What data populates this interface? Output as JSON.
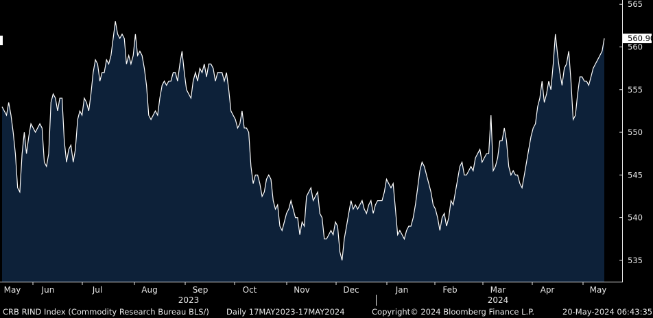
{
  "chart_data": {
    "type": "area",
    "ylim": [
      532.5,
      565.5
    ],
    "yticks": [
      535,
      540,
      545,
      550,
      555,
      560,
      565
    ],
    "last_value_label": "560.90",
    "months": [
      "May",
      "Jun",
      "Jul",
      "Aug",
      "Sep",
      "Oct",
      "Nov",
      "Dec",
      "Jan",
      "Feb",
      "Mar",
      "Apr",
      "May"
    ],
    "years": [
      "2023",
      "2024"
    ],
    "series": [
      {
        "values": [
          553.0,
          552.5,
          552.0,
          553.5,
          552.0,
          550.0,
          547.5,
          543.5,
          543.0,
          547.5,
          550.0,
          547.5,
          549.5,
          551.0,
          550.5,
          550.0,
          550.5,
          551.0,
          550.5,
          546.5,
          546.0,
          547.5,
          553.5,
          554.5,
          554.0,
          552.5,
          554.0,
          554.0,
          549.0,
          546.5,
          548.0,
          548.5,
          546.5,
          548.0,
          551.5,
          552.5,
          552.0,
          554.0,
          553.5,
          552.5,
          554.5,
          557.0,
          558.5,
          558.0,
          556.0,
          557.0,
          557.0,
          558.5,
          558.0,
          559.0,
          561.0,
          563.0,
          561.5,
          561.0,
          561.5,
          561.0,
          558.0,
          559.0,
          558.0,
          559.0,
          561.5,
          559.0,
          559.5,
          559.0,
          557.5,
          555.5,
          552.0,
          551.5,
          552.0,
          552.5,
          552.0,
          554.0,
          555.5,
          556.0,
          555.5,
          556.0,
          556.0,
          557.0,
          557.0,
          556.0,
          558.0,
          559.5,
          557.0,
          555.0,
          554.5,
          554.0,
          556.0,
          557.0,
          556.0,
          557.5,
          557.0,
          558.0,
          556.5,
          558.0,
          558.0,
          557.5,
          556.0,
          557.0,
          557.0,
          557.0,
          556.0,
          557.0,
          555.0,
          552.5,
          552.0,
          551.5,
          550.5,
          551.0,
          552.5,
          550.5,
          550.5,
          550.0,
          546.0,
          544.0,
          545.0,
          545.0,
          544.0,
          542.5,
          543.0,
          544.5,
          545.0,
          544.5,
          542.0,
          541.0,
          541.5,
          539.0,
          538.5,
          539.5,
          540.5,
          541.0,
          542.0,
          541.0,
          540.0,
          540.0,
          538.0,
          539.5,
          539.0,
          542.5,
          543.0,
          543.5,
          542.0,
          542.5,
          543.0,
          540.5,
          540.0,
          537.5,
          537.5,
          538.0,
          538.5,
          538.0,
          539.5,
          539.0,
          536.0,
          535.0,
          537.5,
          539.0,
          540.5,
          542.0,
          541.0,
          541.5,
          541.0,
          541.5,
          542.0,
          541.0,
          540.5,
          541.5,
          542.0,
          540.5,
          541.5,
          542.0,
          542.0,
          542.0,
          543.0,
          544.5,
          544.0,
          543.5,
          544.0,
          541.0,
          538.0,
          538.5,
          538.0,
          537.5,
          538.5,
          539.0,
          539.0,
          540.0,
          541.5,
          543.5,
          545.5,
          546.5,
          546.0,
          545.0,
          544.0,
          543.0,
          541.5,
          541.0,
          540.0,
          538.5,
          540.0,
          540.5,
          539.0,
          540.0,
          542.0,
          541.5,
          543.0,
          544.5,
          546.0,
          546.5,
          545.0,
          545.0,
          545.5,
          546.0,
          545.5,
          547.0,
          547.5,
          548.0,
          546.5,
          547.0,
          547.5,
          547.5,
          552.0,
          545.5,
          546.0,
          547.0,
          549.0,
          549.0,
          550.5,
          549.0,
          546.0,
          545.0,
          545.5,
          545.0,
          545.0,
          544.0,
          543.5,
          545.0,
          546.5,
          548.0,
          549.5,
          550.5,
          551.0,
          553.0,
          554.0,
          556.0,
          553.5,
          554.5,
          556.0,
          555.0,
          558.0,
          561.5,
          559.0,
          557.0,
          555.5,
          557.5,
          558.0,
          559.5,
          556.0,
          551.5,
          552.0,
          554.5,
          556.5,
          556.5,
          556.0,
          556.0,
          555.5,
          556.5,
          557.5,
          558.0,
          558.5,
          559.0,
          559.5,
          561.0
        ]
      }
    ]
  },
  "footer": {
    "index": "CRB RIND Index (Commodity Research Bureau BLS/)",
    "period": "Daily 17MAY2023-17MAY2024",
    "copyright": "Copyright© 2024 Bloomberg Finance L.P.",
    "timestamp": "20-May-2024 06:43:35"
  },
  "colors": {
    "background": "#000000",
    "fill": "#0d2139",
    "line": "#ffffff"
  }
}
